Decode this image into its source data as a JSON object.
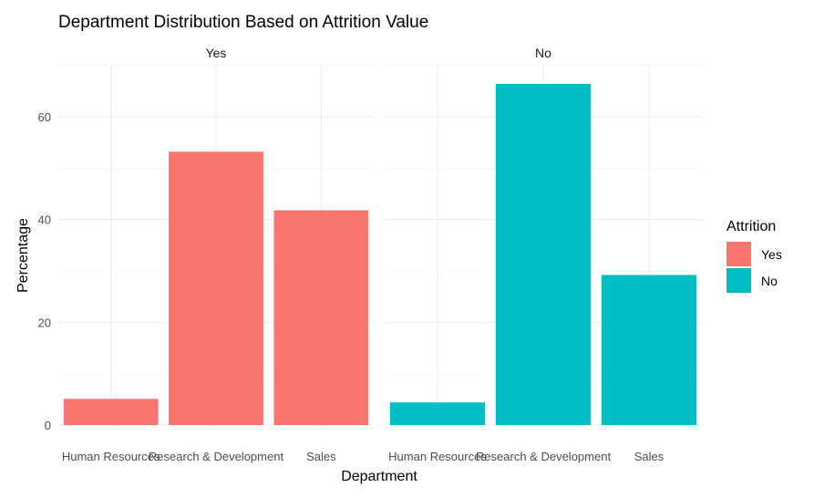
{
  "chart_data": {
    "type": "bar",
    "title": "Department Distribution Based on Attrition Value",
    "xlabel": "Department",
    "ylabel": "Percentage",
    "categories": [
      "Human Resources",
      "Research & Development",
      "Sales"
    ],
    "ylim": [
      0,
      70
    ],
    "yticks": [
      0,
      20,
      40,
      60
    ],
    "grid": true,
    "legend": {
      "title": "Attrition",
      "position": "right",
      "entries": [
        {
          "label": "Yes",
          "color": "#F8766D"
        },
        {
          "label": "No",
          "color": "#00BFC4"
        }
      ]
    },
    "facets": [
      {
        "label": "Yes",
        "color": "#F8766D",
        "values": [
          5.1,
          53.2,
          41.8
        ]
      },
      {
        "label": "No",
        "color": "#00BFC4",
        "values": [
          4.4,
          66.4,
          29.2
        ]
      }
    ]
  }
}
